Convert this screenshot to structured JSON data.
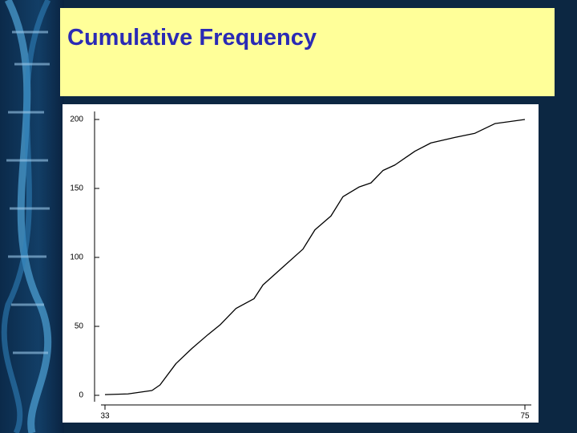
{
  "chart_data": {
    "type": "line",
    "title": "Cumulative Frequency",
    "color": "#000000",
    "x": [
      33,
      35.3,
      37.7,
      38.5,
      40.1,
      41.7,
      43.3,
      44.5,
      46.1,
      47.9,
      48.8,
      50.8,
      52.8,
      54,
      55.6,
      56.8,
      58.4,
      59.6,
      60.8,
      62,
      64,
      65.6,
      68,
      70,
      72,
      75
    ],
    "values": [
      0.5,
      1,
      3.5,
      7.5,
      23,
      34,
      44,
      51,
      63,
      70,
      80,
      93,
      106,
      120,
      130,
      144,
      151,
      154,
      163,
      167,
      177,
      183,
      187,
      190,
      197,
      200
    ],
    "xlim": [
      33,
      75
    ],
    "xticks": [
      33,
      75
    ],
    "ylim": [
      0,
      200
    ],
    "yticks": [
      0,
      50,
      100,
      150,
      200
    ]
  }
}
